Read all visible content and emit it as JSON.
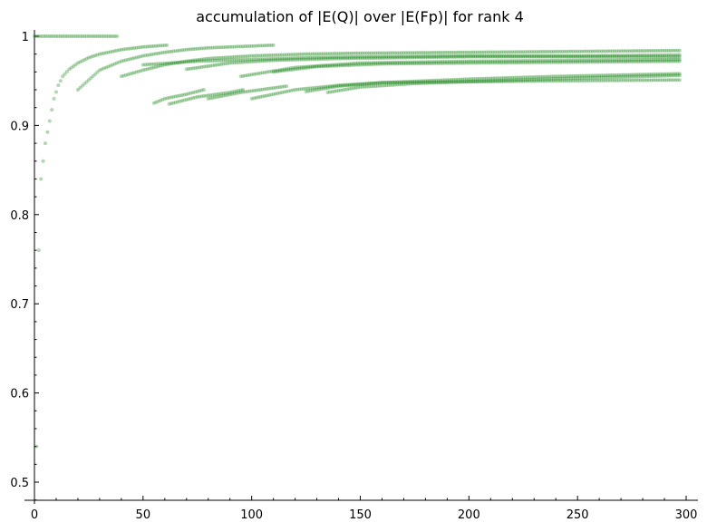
{
  "chart_data": {
    "type": "scatter",
    "title": "accumulation of |E(Q)| over |E(Fp)| for rank 4",
    "xlabel": "",
    "ylabel": "",
    "xlim": [
      0,
      300
    ],
    "ylim": [
      0.48,
      1.01
    ],
    "x_ticks": [
      0,
      50,
      100,
      150,
      200,
      250,
      300
    ],
    "x_tick_labels": [
      "0",
      "50",
      "100",
      "150",
      "200",
      "250",
      "300"
    ],
    "y_ticks": [
      0.5,
      0.6,
      0.7,
      0.8,
      0.9,
      1.0
    ],
    "y_tick_labels": [
      "0.5",
      "0.6",
      "0.7",
      "0.8",
      "0.9",
      "1"
    ],
    "marker_color": "#228b22",
    "grid": false,
    "series": [
      {
        "points": [
          [
            0,
            1.0
          ],
          [
            5,
            1.0
          ],
          [
            10,
            1.0
          ],
          [
            15,
            1.0
          ],
          [
            20,
            1.0
          ],
          [
            25,
            1.0
          ],
          [
            30,
            1.0
          ],
          [
            35,
            1.0
          ],
          [
            38,
            1.0
          ]
        ]
      },
      {
        "points": [
          [
            1,
            0.54
          ],
          [
            2,
            0.76
          ],
          [
            3,
            0.84
          ],
          [
            5,
            0.88
          ],
          [
            7,
            0.905
          ],
          [
            9,
            0.93
          ],
          [
            11,
            0.945
          ],
          [
            13,
            0.955
          ],
          [
            16,
            0.963
          ],
          [
            20,
            0.97
          ],
          [
            25,
            0.976
          ],
          [
            30,
            0.98
          ],
          [
            40,
            0.985
          ],
          [
            50,
            0.988
          ],
          [
            61,
            0.99
          ]
        ]
      },
      {
        "points": [
          [
            20,
            0.94
          ],
          [
            30,
            0.962
          ],
          [
            40,
            0.972
          ],
          [
            50,
            0.978
          ],
          [
            60,
            0.982
          ],
          [
            70,
            0.985
          ],
          [
            80,
            0.987
          ],
          [
            90,
            0.988
          ],
          [
            100,
            0.989
          ],
          [
            110,
            0.99
          ]
        ]
      },
      {
        "points": [
          [
            40,
            0.955
          ],
          [
            50,
            0.962
          ],
          [
            60,
            0.968
          ],
          [
            70,
            0.972
          ],
          [
            80,
            0.975
          ],
          [
            100,
            0.978
          ],
          [
            125,
            0.98
          ],
          [
            150,
            0.981
          ],
          [
            200,
            0.982
          ],
          [
            250,
            0.983
          ],
          [
            297,
            0.984
          ]
        ]
      },
      {
        "points": [
          [
            50,
            0.968
          ],
          [
            75,
            0.972
          ],
          [
            100,
            0.974
          ],
          [
            125,
            0.976
          ],
          [
            150,
            0.977
          ],
          [
            200,
            0.978
          ],
          [
            250,
            0.978
          ],
          [
            297,
            0.979
          ]
        ]
      },
      {
        "points": [
          [
            55,
            0.925
          ],
          [
            60,
            0.93
          ],
          [
            70,
            0.935
          ],
          [
            78,
            0.94
          ]
        ]
      },
      {
        "points": [
          [
            62,
            0.924
          ],
          [
            75,
            0.932
          ],
          [
            90,
            0.937
          ],
          [
            96,
            0.94
          ]
        ]
      },
      {
        "points": [
          [
            70,
            0.963
          ],
          [
            90,
            0.97
          ],
          [
            110,
            0.973
          ],
          [
            140,
            0.975
          ],
          [
            170,
            0.976
          ],
          [
            200,
            0.977
          ],
          [
            240,
            0.977
          ],
          [
            280,
            0.977
          ],
          [
            297,
            0.977
          ]
        ]
      },
      {
        "points": [
          [
            80,
            0.93
          ],
          [
            95,
            0.937
          ],
          [
            110,
            0.942
          ],
          [
            116,
            0.944
          ]
        ]
      },
      {
        "points": [
          [
            100,
            0.93
          ],
          [
            120,
            0.94
          ],
          [
            140,
            0.945
          ],
          [
            160,
            0.948
          ],
          [
            200,
            0.949
          ],
          [
            240,
            0.95
          ],
          [
            297,
            0.951
          ]
        ]
      },
      {
        "points": [
          [
            125,
            0.938
          ],
          [
            140,
            0.944
          ],
          [
            160,
            0.948
          ],
          [
            200,
            0.952
          ],
          [
            240,
            0.955
          ],
          [
            297,
            0.958
          ]
        ]
      },
      {
        "points": [
          [
            135,
            0.937
          ],
          [
            150,
            0.943
          ],
          [
            175,
            0.947
          ],
          [
            210,
            0.95
          ],
          [
            250,
            0.953
          ],
          [
            297,
            0.956
          ]
        ]
      },
      {
        "points": [
          [
            95,
            0.955
          ],
          [
            120,
            0.965
          ],
          [
            150,
            0.97
          ],
          [
            200,
            0.972
          ],
          [
            250,
            0.973
          ],
          [
            297,
            0.974
          ]
        ]
      },
      {
        "points": [
          [
            110,
            0.96
          ],
          [
            130,
            0.966
          ],
          [
            160,
            0.969
          ],
          [
            200,
            0.97
          ],
          [
            250,
            0.971
          ],
          [
            297,
            0.972
          ]
        ]
      }
    ]
  }
}
